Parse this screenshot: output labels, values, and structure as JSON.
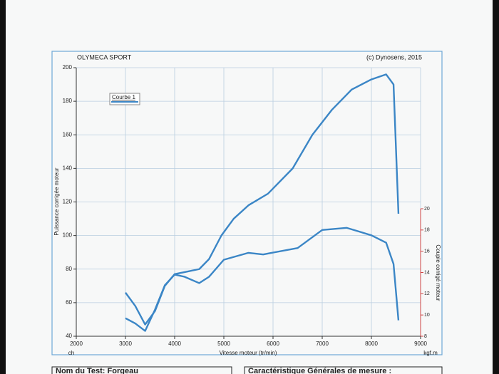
{
  "chart_data": {
    "type": "line",
    "title": "OLYMECA SPORT",
    "subtitle": "(c) Dynosens, 2015",
    "x_label": "Vitesse moteur (tr/min)",
    "x_unit": "ch",
    "y_label": "Puissance corrigée moteur",
    "y2_label": "Couple corrigé moteur",
    "y2_unit": "kgf.m",
    "xlim": [
      2000,
      9000
    ],
    "xticks": [
      2000,
      3000,
      4000,
      5000,
      6000,
      7000,
      8000,
      9000
    ],
    "ylim": [
      40,
      200
    ],
    "yticks": [
      40,
      60,
      80,
      100,
      120,
      140,
      160,
      180,
      200
    ],
    "y2lim": [
      8,
      20
    ],
    "y2ticks": [
      8,
      10,
      12,
      14,
      16,
      18,
      20
    ],
    "grid": true,
    "legend": "upper left",
    "series": [
      {
        "name": "Courbe 1",
        "color": "#3b86c6",
        "x": [
          3000,
          3200,
          3400,
          3600,
          3800,
          4000,
          4500,
          4700,
          4950,
          5200,
          5500,
          5900,
          6400,
          6800,
          7200,
          7600,
          8000,
          8300,
          8450,
          8550
        ],
        "values": [
          66,
          58,
          47,
          55,
          70,
          77,
          80,
          86,
          100,
          110,
          118,
          125,
          140,
          160,
          175,
          187,
          193,
          196,
          190,
          113
        ]
      },
      {
        "color": "#3b86c6",
        "axis": "y2",
        "x": [
          3000,
          3200,
          3400,
          3600,
          3800,
          4000,
          4200,
          4500,
          4700,
          5000,
          5500,
          5800,
          6500,
          7000,
          7500,
          8000,
          8300,
          8450,
          8550
        ],
        "values": [
          9.7,
          9.2,
          8.5,
          10.5,
          12.8,
          13.8,
          13.6,
          13.0,
          13.6,
          15.2,
          15.85,
          15.7,
          16.3,
          18.0,
          18.2,
          17.5,
          16.8,
          14.8,
          9.5
        ]
      }
    ]
  },
  "footer_boxes": [
    "Nom du Test: Forgeau",
    "Caractéristique Générales de mesure :"
  ]
}
